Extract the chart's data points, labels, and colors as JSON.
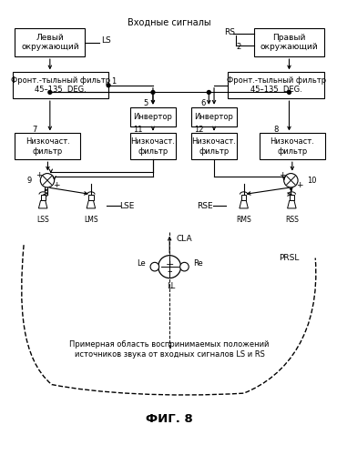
{
  "title": "Входные сигналы",
  "fig_label": "ФИГ. 8",
  "bg_color": "#ffffff",
  "box_color": "#ffffff",
  "border_color": "#000000",
  "text_color": "#000000",
  "fs": 6.5,
  "bottom_text": "Примерная область воспринимаемых положений\nисточников звука от входных сигналов LS и RS"
}
